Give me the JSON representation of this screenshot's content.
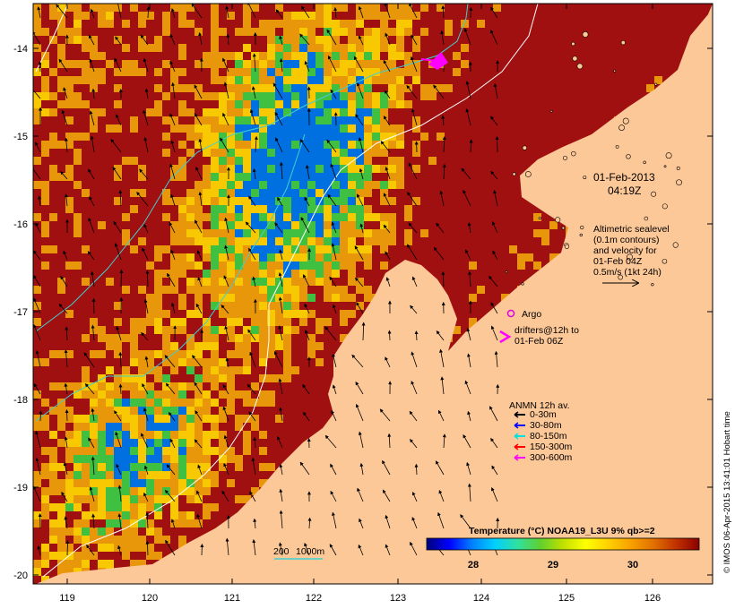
{
  "map": {
    "timestamp": {
      "line1": "01-Feb-2013",
      "line2": "04:19Z"
    },
    "altimetry_note": [
      "Altimetric sealevel",
      "(0.1m contours)",
      "and velocity for",
      "01-Feb 04Z",
      "0.5m/s (1kt 24h)"
    ],
    "argo_label": "Argo",
    "drifters_note": [
      "drifters@12h to",
      "01-Feb 06Z"
    ],
    "anmn_legend": {
      "title": "ANMN 12h av.",
      "items": [
        {
          "label": "0-30m",
          "color": "#000000"
        },
        {
          "label": "30-80m",
          "color": "#0000ff"
        },
        {
          "label": "80-150m",
          "color": "#00e0e0"
        },
        {
          "label": "150-300m",
          "color": "#ff0000"
        },
        {
          "label": "300-600m",
          "color": "#ff00ff"
        }
      ]
    },
    "isobath_legend": {
      "label_200": "200",
      "label_1000": "1000m"
    },
    "colorbar": {
      "title": "Temperature (°C) NOAA19_L3U 9% qb>=2",
      "ticks": [
        "28",
        "29",
        "30"
      ],
      "colors": [
        "#00007a",
        "#0000ff",
        "#0080ff",
        "#00d0ff",
        "#30e0a0",
        "#60d030",
        "#c0e000",
        "#ffff00",
        "#ffd000",
        "#f8a000",
        "#e07000",
        "#c03000",
        "#8b0000"
      ]
    },
    "credit": "© IMOS 06-Apr-2015 13:41:01 Hobart time",
    "y_ticks": [
      "-14",
      "-15",
      "-16",
      "-17",
      "-18",
      "-19",
      "-20"
    ],
    "x_ticks": [
      "119",
      "120",
      "121",
      "122",
      "123",
      "124",
      "125",
      "126"
    ],
    "colors": {
      "land": "#fdc898",
      "sst_hot": "#a01010",
      "sst_warm": "#e8960a",
      "sst_mid": "#f8c800",
      "sst_cool": "#40c040",
      "sst_cold": "#0070e0",
      "isobath_200": "#40d0d0",
      "isobath_1000": "#ffffff",
      "argo": "#e000e0"
    }
  }
}
